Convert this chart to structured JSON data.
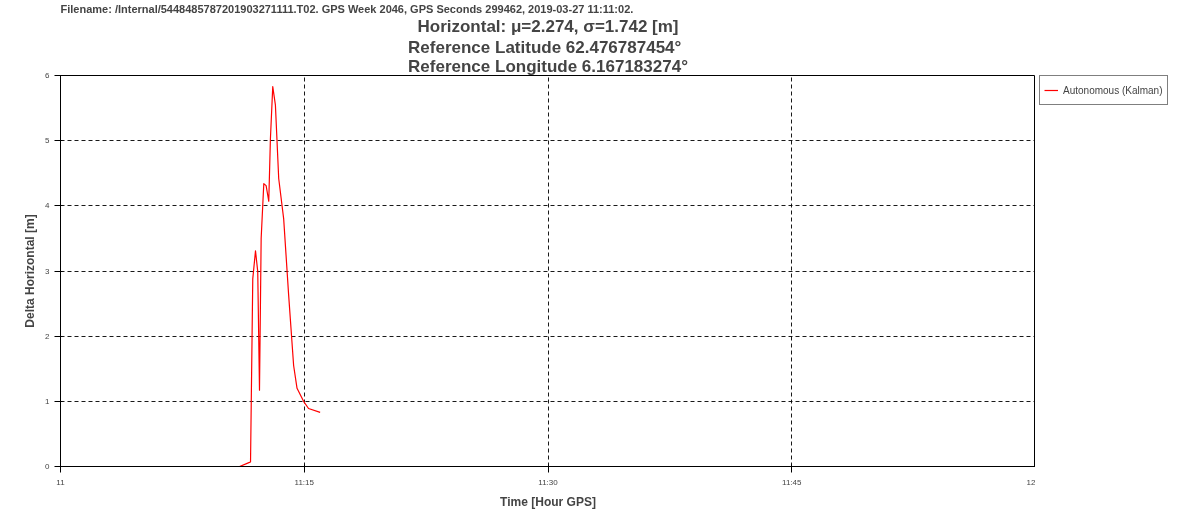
{
  "chart_data": {
    "type": "line",
    "title": "Horizontal: μ=2.274, σ=1.742 [m]",
    "subtitle": "Reference Latitude 62.476787454°\nReference Longitude 6.167183274°",
    "annotations": [
      "Filename: /Internal/5448485787201903271111.T02.  GPS Week 2046, GPS Seconds 299462, 2019-03-27 11:11:02."
    ],
    "xlabel": "Time [Hour GPS]",
    "ylabel": "Delta Horizontal [m]",
    "x": [
      11.1837,
      11.1932,
      11.1949,
      11.1972,
      11.2,
      11.2023,
      11.2041,
      11.2058,
      11.2085,
      11.2109,
      11.2136,
      11.2153,
      11.2177,
      11.2204,
      11.2238,
      11.2289,
      11.234,
      11.2391,
      11.2426,
      11.2493,
      11.2544,
      11.2663
    ],
    "series": [
      {
        "name": "Autonomous (Kalman)",
        "color": "#ff0000",
        "values": [
          0,
          0.06,
          0.07,
          2.88,
          3.31,
          2.99,
          1.17,
          3.5,
          4.34,
          4.31,
          4.07,
          5.03,
          5.83,
          5.55,
          4.42,
          3.8,
          2.63,
          1.55,
          1.2,
          1.0,
          0.89,
          0.83
        ]
      }
    ],
    "xlim": [
      11,
      12
    ],
    "xticks": [
      11,
      {
        "value": 11.25,
        "label": "11:15"
      },
      {
        "value": 11.5,
        "label": "11:30"
      },
      {
        "value": 11.75,
        "label": "11:45"
      },
      12
    ],
    "ylim": [
      0,
      6
    ],
    "yticks": [
      0,
      1,
      2,
      3,
      4,
      5,
      6
    ],
    "grid": true,
    "line_style": "solid",
    "legend": "top right"
  }
}
